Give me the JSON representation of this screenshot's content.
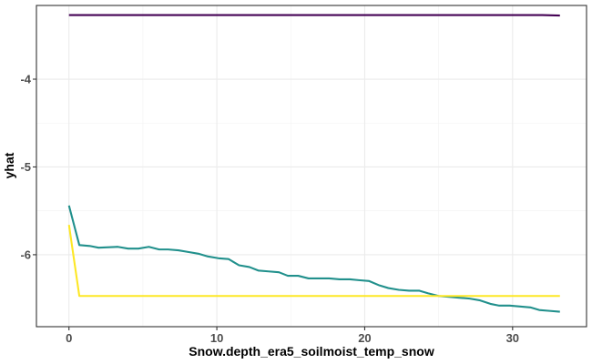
{
  "chart_data": {
    "type": "line",
    "xlabel": "Snow.depth_era5_soilmoist_temp_snow",
    "ylabel": "yhat",
    "xlim": [
      -2.2,
      35.0
    ],
    "ylim": [
      -6.82,
      -3.16
    ],
    "x_ticks": [
      0,
      10,
      20,
      30
    ],
    "y_ticks": [
      -6,
      -5,
      -4
    ],
    "x_tick_labels": [
      "0",
      "10",
      "20",
      "30"
    ],
    "y_tick_labels": [
      "-6",
      "-5",
      "-4"
    ],
    "grid": true,
    "legend": "none",
    "colors": {
      "purple": "#440154",
      "teal": "#21908C",
      "yellow": "#FDE725"
    },
    "series": [
      {
        "color": "#440154",
        "x": [
          0,
          2,
          4,
          6,
          8,
          10,
          12,
          14,
          16,
          18,
          20,
          22,
          24,
          26,
          28,
          30,
          32,
          33.2
        ],
        "values": [
          -3.27,
          -3.27,
          -3.27,
          -3.27,
          -3.27,
          -3.27,
          -3.27,
          -3.27,
          -3.27,
          -3.27,
          -3.27,
          -3.27,
          -3.27,
          -3.27,
          -3.27,
          -3.27,
          -3.27,
          -3.275
        ]
      },
      {
        "color": "#21908C",
        "x": [
          0,
          0.7,
          1.4,
          2.0,
          3.3,
          4.0,
          4.7,
          5.4,
          6.1,
          6.7,
          7.4,
          8.1,
          8.8,
          9.4,
          10.1,
          10.8,
          11.5,
          12.2,
          12.8,
          13.5,
          14.2,
          14.8,
          15.5,
          16.2,
          16.9,
          17.6,
          18.3,
          19.0,
          19.6,
          20.3,
          21.0,
          21.6,
          22.3,
          23.0,
          23.7,
          24.3,
          25.0,
          25.7,
          26.4,
          27.1,
          27.8,
          28.5,
          29.1,
          29.8,
          30.5,
          31.2,
          31.8,
          32.5,
          33.2
        ],
        "values": [
          -5.44,
          -5.89,
          -5.9,
          -5.92,
          -5.91,
          -5.93,
          -5.93,
          -5.91,
          -5.94,
          -5.94,
          -5.95,
          -5.97,
          -5.99,
          -6.02,
          -6.04,
          -6.05,
          -6.12,
          -6.14,
          -6.18,
          -6.19,
          -6.2,
          -6.24,
          -6.24,
          -6.27,
          -6.27,
          -6.27,
          -6.28,
          -6.28,
          -6.29,
          -6.3,
          -6.35,
          -6.38,
          -6.4,
          -6.41,
          -6.41,
          -6.44,
          -6.47,
          -6.48,
          -6.49,
          -6.5,
          -6.52,
          -6.56,
          -6.58,
          -6.58,
          -6.59,
          -6.6,
          -6.63,
          -6.64,
          -6.65
        ]
      },
      {
        "color": "#FDE725",
        "x": [
          0,
          0.7,
          5,
          10,
          15,
          20,
          25,
          30,
          33.2
        ],
        "values": [
          -5.66,
          -6.47,
          -6.47,
          -6.47,
          -6.47,
          -6.47,
          -6.47,
          -6.47,
          -6.47
        ]
      }
    ]
  }
}
